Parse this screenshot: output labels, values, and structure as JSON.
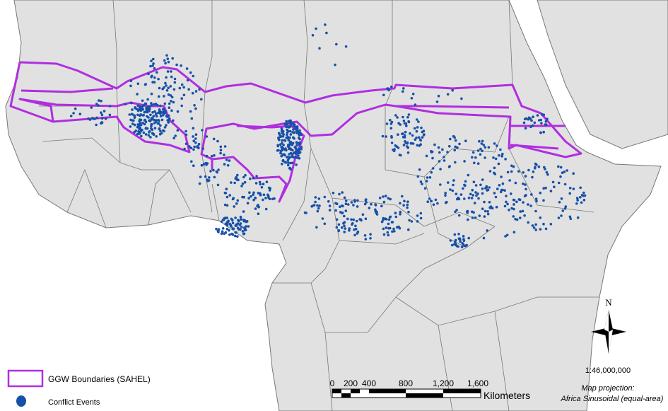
{
  "legend": {
    "items": [
      {
        "label": "GGW Boundaries (SAHEL)"
      },
      {
        "label": "Conflict Events"
      }
    ]
  },
  "scale_bar": {
    "ticks": [
      "0",
      "200",
      "400",
      "800",
      "1,200",
      "1,600"
    ],
    "unit": "Kilometers"
  },
  "north_arrow": {
    "label": "N"
  },
  "scale": "1:46,000,000",
  "projection": {
    "title": "Map projection:",
    "name": "Africa Sinusoidal (equal-area)"
  }
}
